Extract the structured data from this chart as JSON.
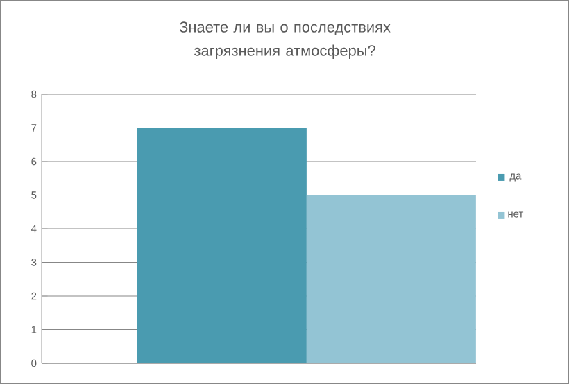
{
  "chart_data": {
    "type": "bar",
    "title": "Знаете ли вы о последствиях загрязнения атмосферы?",
    "categories": [
      null
    ],
    "series": [
      {
        "name": "да",
        "color": "#4a9bb0",
        "values": [
          7
        ]
      },
      {
        "name": "нет",
        "color": "#93c4d4",
        "values": [
          5
        ]
      }
    ],
    "ylim": [
      0,
      8
    ],
    "yticks": [
      0,
      1,
      2,
      3,
      4,
      5,
      6,
      7,
      8
    ],
    "grid": "y",
    "legend": "right"
  }
}
